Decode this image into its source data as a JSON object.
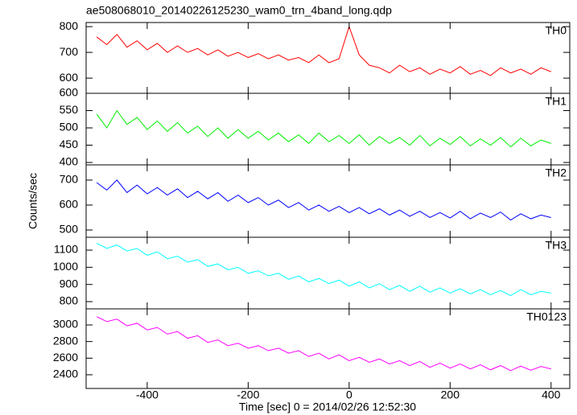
{
  "chart_data": {
    "type": "line",
    "title": "ae508068010_20140226125230_wam0_trn_4band_long.qdp",
    "x_label": "Time [sec] 0 = 2014/02/26 12:52:30",
    "y_label": "Counts/sec",
    "xlim": [
      -521,
      437
    ],
    "xticks": [
      -400,
      -200,
      0,
      200,
      400
    ],
    "x": [
      -500,
      -480,
      -460,
      -440,
      -420,
      -400,
      -380,
      -360,
      -340,
      -320,
      -300,
      -280,
      -260,
      -240,
      -220,
      -200,
      -180,
      -160,
      -140,
      -120,
      -100,
      -80,
      -60,
      -40,
      -20,
      0,
      20,
      40,
      60,
      80,
      100,
      120,
      140,
      160,
      180,
      200,
      220,
      240,
      260,
      280,
      300,
      320,
      340,
      360,
      380,
      400
    ],
    "series": [
      {
        "name": "TH0",
        "color": "#ff0000",
        "ylim": [
          541,
          816
        ],
        "yticks": [
          600,
          700,
          800
        ],
        "values": [
          760,
          730,
          770,
          720,
          745,
          710,
          735,
          700,
          725,
          700,
          715,
          690,
          710,
          685,
          700,
          680,
          695,
          675,
          690,
          670,
          680,
          660,
          690,
          660,
          675,
          800,
          690,
          650,
          640,
          620,
          650,
          625,
          640,
          615,
          635,
          620,
          645,
          615,
          630,
          610,
          640,
          620,
          635,
          615,
          640,
          625
        ]
      },
      {
        "name": "TH1",
        "color": "#00ee00",
        "ylim": [
          393,
          600
        ],
        "yticks": [
          400,
          450,
          500,
          550,
          600
        ],
        "values": [
          540,
          500,
          550,
          510,
          530,
          495,
          520,
          490,
          515,
          485,
          505,
          475,
          500,
          470,
          495,
          470,
          490,
          465,
          485,
          460,
          480,
          455,
          485,
          460,
          478,
          455,
          480,
          450,
          475,
          455,
          472,
          450,
          478,
          448,
          470,
          452,
          475,
          448,
          468,
          450,
          472,
          445,
          470,
          448,
          465,
          455
        ]
      },
      {
        "name": "TH2",
        "color": "#0000ff",
        "ylim": [
          471,
          761
        ],
        "yticks": [
          500,
          600,
          700
        ],
        "values": [
          690,
          660,
          700,
          650,
          680,
          645,
          670,
          640,
          665,
          630,
          655,
          625,
          650,
          615,
          640,
          610,
          630,
          600,
          620,
          590,
          610,
          580,
          600,
          575,
          595,
          570,
          590,
          565,
          585,
          560,
          580,
          555,
          575,
          550,
          570,
          548,
          575,
          545,
          568,
          550,
          572,
          540,
          565,
          545,
          560,
          550
        ]
      },
      {
        "name": "TH3",
        "color": "#00ffff",
        "ylim": [
          758,
          1175
        ],
        "yticks": [
          800,
          900,
          1000,
          1100
        ],
        "values": [
          1140,
          1110,
          1130,
          1095,
          1110,
          1070,
          1090,
          1050,
          1065,
          1030,
          1045,
          1005,
          1020,
          985,
          1000,
          965,
          980,
          950,
          965,
          930,
          950,
          915,
          935,
          905,
          925,
          890,
          915,
          880,
          905,
          870,
          895,
          860,
          890,
          855,
          880,
          850,
          875,
          845,
          870,
          840,
          865,
          835,
          870,
          840,
          860,
          850
        ]
      },
      {
        "name": "TH0123",
        "color": "#ff00ff",
        "ylim": [
          2235,
          3194
        ],
        "yticks": [
          2400,
          2600,
          2800,
          3000
        ],
        "values": [
          3100,
          3040,
          3070,
          2990,
          3020,
          2940,
          2970,
          2890,
          2920,
          2840,
          2870,
          2790,
          2820,
          2750,
          2780,
          2720,
          2750,
          2690,
          2720,
          2660,
          2690,
          2620,
          2660,
          2590,
          2640,
          2570,
          2610,
          2550,
          2590,
          2530,
          2570,
          2510,
          2560,
          2490,
          2540,
          2480,
          2530,
          2470,
          2520,
          2460,
          2510,
          2450,
          2505,
          2455,
          2500,
          2470
        ]
      }
    ]
  }
}
